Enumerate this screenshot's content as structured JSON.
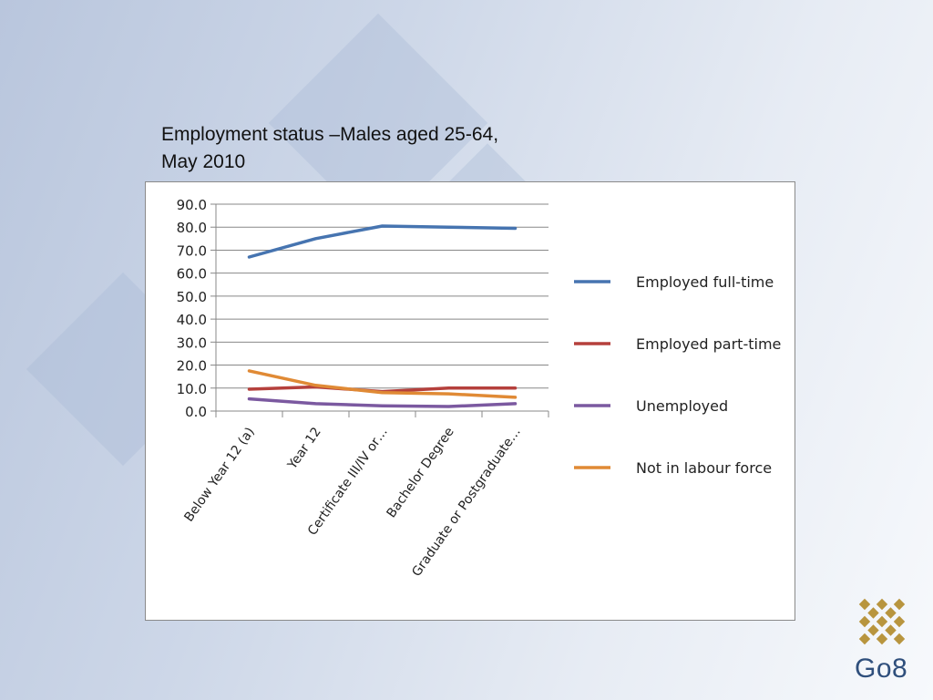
{
  "slide": {
    "title_line1": "Employment status –Males aged 25-64,",
    "title_line2": "May 2010",
    "logo_text": "Go8"
  },
  "chart_data": {
    "type": "line",
    "title": "",
    "xlabel": "",
    "ylabel": "",
    "ylim": [
      0,
      90
    ],
    "yticks": [
      "0.0",
      "10.0",
      "20.0",
      "30.0",
      "40.0",
      "50.0",
      "60.0",
      "70.0",
      "80.0",
      "90.0"
    ],
    "grid": true,
    "legend_position": "right",
    "categories": [
      "Below Year 12 (a)",
      "Year 12",
      "Certificate III/IV or…",
      "Bachelor Degree",
      "Graduate or Postgraduate…"
    ],
    "series": [
      {
        "name": "Employed full-time",
        "color": "#4674b0",
        "values": [
          67.0,
          75.0,
          80.5,
          80.0,
          79.5
        ]
      },
      {
        "name": "Employed part-time",
        "color": "#b5403c",
        "values": [
          9.5,
          10.5,
          8.5,
          10.0,
          10.0
        ]
      },
      {
        "name": "Unemployed",
        "color": "#7b59a0",
        "values": [
          5.3,
          3.2,
          2.3,
          2.0,
          3.2
        ]
      },
      {
        "name": "Not in labour force",
        "color": "#e08a35",
        "values": [
          17.5,
          11.2,
          8.0,
          7.5,
          6.0
        ]
      }
    ]
  },
  "colors": {
    "grid": "#888888",
    "logo_gold": "#b8953e",
    "logo_text": "#2f4f7c"
  }
}
